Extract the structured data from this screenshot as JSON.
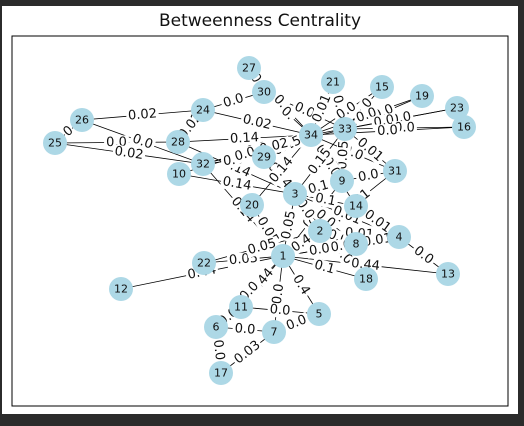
{
  "figure": {
    "title": "Betweenness Centrality"
  },
  "graph": {
    "colors": {
      "node": "#add8e6",
      "edge": "#000000",
      "frame": "#000000"
    },
    "nodes": [
      "27",
      "21",
      "15",
      "19",
      "23",
      "30",
      "24",
      "26",
      "16",
      "34",
      "33",
      "25",
      "28",
      "29",
      "32",
      "31",
      "10",
      "9",
      "3",
      "20",
      "14",
      "2",
      "4",
      "8",
      "22",
      "1",
      "18",
      "13",
      "12",
      "11",
      "5",
      "6",
      "7",
      "17"
    ],
    "edges": [
      {
        "source": "26",
        "target": "24",
        "label": "0.02"
      },
      {
        "source": "26",
        "target": "32",
        "label": "0.0"
      },
      {
        "source": "25",
        "target": "26",
        "label": "0"
      },
      {
        "source": "25",
        "target": "28",
        "label": "0.0"
      },
      {
        "source": "25",
        "target": "32",
        "label": "0.02"
      },
      {
        "source": "24",
        "target": "30",
        "label": "0.0"
      },
      {
        "source": "24",
        "target": "28",
        "label": "0.02"
      },
      {
        "source": "24",
        "target": "34",
        "label": "0.02"
      },
      {
        "source": "27",
        "target": "30",
        "label": "0."
      },
      {
        "source": "27",
        "target": "34",
        "label": "0."
      },
      {
        "source": "30",
        "target": "34",
        "label": "0."
      },
      {
        "source": "30",
        "target": "33",
        "label": "0.0"
      },
      {
        "source": "21",
        "target": "33",
        "label": "0.0"
      },
      {
        "source": "21",
        "target": "34",
        "label": "0.01"
      },
      {
        "source": "15",
        "target": "33",
        "label": "0.0"
      },
      {
        "source": "15",
        "target": "34",
        "label": "0.0"
      },
      {
        "source": "19",
        "target": "33",
        "label": "0.0"
      },
      {
        "source": "19",
        "target": "34",
        "label": "0.0"
      },
      {
        "source": "23",
        "target": "33",
        "label": "0.0"
      },
      {
        "source": "23",
        "target": "34",
        "label": "0.0"
      },
      {
        "source": "16",
        "target": "33",
        "label": "0.0"
      },
      {
        "source": "16",
        "target": "34",
        "label": "0.0"
      },
      {
        "source": "28",
        "target": "34",
        "label": "0.14"
      },
      {
        "source": "28",
        "target": "3",
        "label": "0.14"
      },
      {
        "source": "29",
        "target": "34",
        "label": "0.15"
      },
      {
        "source": "29",
        "target": "32",
        "label": "0.0"
      },
      {
        "source": "29",
        "target": "3",
        "label": "0.14"
      },
      {
        "source": "32",
        "target": "34",
        "label": "0.0"
      },
      {
        "source": "32",
        "target": "33",
        "label": "0.02"
      },
      {
        "source": "32",
        "target": "1",
        "label": "0.14"
      },
      {
        "source": "10",
        "target": "34",
        "label": "0.0"
      },
      {
        "source": "10",
        "target": "3",
        "label": "0.14"
      },
      {
        "source": "31",
        "target": "33",
        "label": "0.01"
      },
      {
        "source": "31",
        "target": "34",
        "label": "0.0"
      },
      {
        "source": "31",
        "target": "9",
        "label": "0.0"
      },
      {
        "source": "31",
        "target": "2",
        "label": "0.01"
      },
      {
        "source": "9",
        "target": "33",
        "label": "0.05"
      },
      {
        "source": "9",
        "target": "34",
        "label": "0.05"
      },
      {
        "source": "9",
        "target": "3",
        "label": "0.1"
      },
      {
        "source": "9",
        "target": "1",
        "label": "0.1"
      },
      {
        "source": "14",
        "target": "34",
        "label": "0.05"
      },
      {
        "source": "14",
        "target": "3",
        "label": "0.1"
      },
      {
        "source": "14",
        "target": "2",
        "label": "0.0"
      },
      {
        "source": "14",
        "target": "4",
        "label": "0.01"
      },
      {
        "source": "14",
        "target": "1",
        "label": "0.1"
      },
      {
        "source": "20",
        "target": "34",
        "label": "0.14"
      },
      {
        "source": "20",
        "target": "1",
        "label": "0.05"
      },
      {
        "source": "3",
        "target": "33",
        "label": "0.15"
      },
      {
        "source": "3",
        "target": "2",
        "label": "0.05"
      },
      {
        "source": "3",
        "target": "8",
        "label": "0.0"
      },
      {
        "source": "3",
        "target": "4",
        "label": "0.01"
      },
      {
        "source": "3",
        "target": "1",
        "label": "0.05"
      },
      {
        "source": "2",
        "target": "8",
        "label": "0.0"
      },
      {
        "source": "2",
        "target": "4",
        "label": "0.01"
      },
      {
        "source": "2",
        "target": "1",
        "label": "0.4"
      },
      {
        "source": "2",
        "target": "18",
        "label": "0.0"
      },
      {
        "source": "4",
        "target": "8",
        "label": "0.01"
      },
      {
        "source": "4",
        "target": "13",
        "label": "0.0"
      },
      {
        "source": "4",
        "target": "1",
        "label": "0.0"
      },
      {
        "source": "8",
        "target": "1",
        "label": "0.0"
      },
      {
        "source": "22",
        "target": "1",
        "label": "0.05"
      },
      {
        "source": "22",
        "target": "2",
        "label": "0.05"
      },
      {
        "source": "1",
        "target": "18",
        "label": "0.1"
      },
      {
        "source": "1",
        "target": "13",
        "label": "0.44"
      },
      {
        "source": "1",
        "target": "12",
        "label": "0.44"
      },
      {
        "source": "1",
        "target": "11",
        "label": "0.44"
      },
      {
        "source": "1",
        "target": "5",
        "label": "0.4"
      },
      {
        "source": "1",
        "target": "6",
        "label": "0.0"
      },
      {
        "source": "1",
        "target": "7",
        "label": "0.0"
      },
      {
        "source": "11",
        "target": "5",
        "label": "0.0"
      },
      {
        "source": "11",
        "target": "6",
        "label": "0.0"
      },
      {
        "source": "5",
        "target": "7",
        "label": "0.0"
      },
      {
        "source": "6",
        "target": "7",
        "label": "0.0"
      },
      {
        "source": "6",
        "target": "17",
        "label": "0.0"
      },
      {
        "source": "7",
        "target": "17",
        "label": "0.03"
      }
    ]
  }
}
